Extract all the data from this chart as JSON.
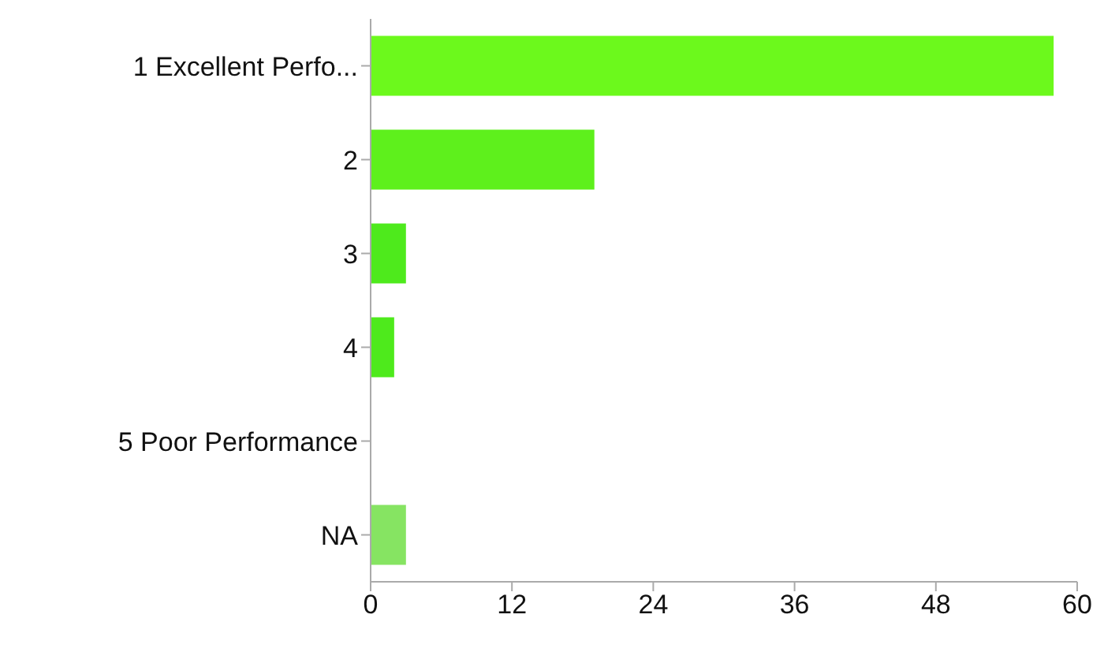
{
  "chart_data": {
    "type": "bar",
    "orientation": "horizontal",
    "categories": [
      "1 Excellent Perfo...",
      "2",
      "3",
      "4",
      "5 Poor Performance",
      "NA"
    ],
    "values": [
      58,
      19,
      3,
      2,
      0,
      3
    ],
    "colors": [
      "#6cf91c",
      "#5ef01c",
      "#4eea1c",
      "#4eea1c",
      "#4eea1c",
      "#86e462"
    ],
    "xlim": [
      0,
      60
    ],
    "xticks": [
      0,
      12,
      24,
      36,
      48,
      60
    ],
    "grid": false,
    "legend": false
  }
}
